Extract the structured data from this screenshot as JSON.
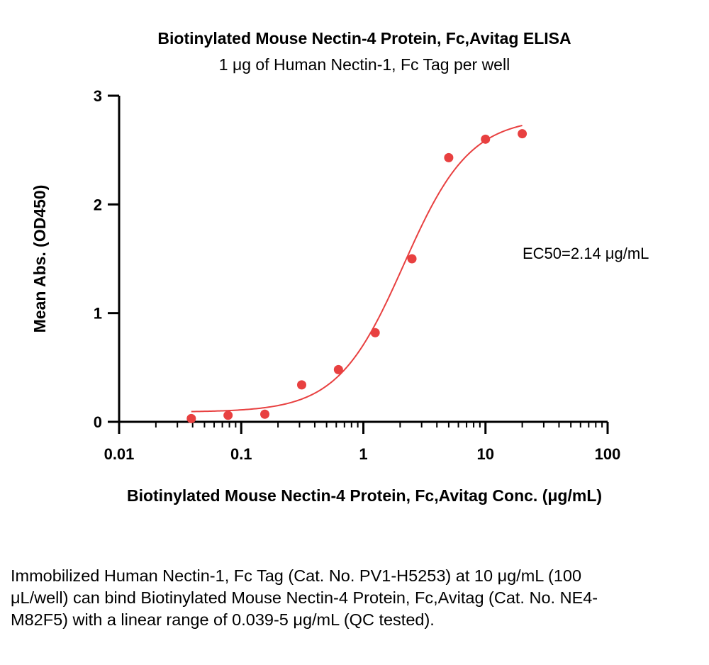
{
  "chart_data": {
    "type": "scatter",
    "title": "Biotinylated Mouse Nectin-4 Protein, Fc,Avitag ELISA",
    "subtitle": "1 μg of Human Nectin-1, Fc Tag per well",
    "xlabel": "Biotinylated Mouse Nectin-4 Protein, Fc,Avitag Conc. (μg/mL)",
    "ylabel": "Mean Abs. (OD450)",
    "x_scale": "log",
    "xlim": [
      0.01,
      100
    ],
    "ylim": [
      0,
      3
    ],
    "x_ticks": [
      0.01,
      0.1,
      1,
      10,
      100
    ],
    "x_tick_labels": [
      "0.01",
      "0.1",
      "1",
      "10",
      "100"
    ],
    "y_ticks": [
      0,
      1,
      2,
      3
    ],
    "y_tick_labels": [
      "0",
      "1",
      "2",
      "3"
    ],
    "grid": false,
    "series": [
      {
        "x": [
          0.039,
          0.078,
          0.156,
          0.3125,
          0.625,
          1.25,
          2.5,
          5,
          10,
          20
        ],
        "y": [
          0.03,
          0.06,
          0.07,
          0.34,
          0.48,
          0.82,
          1.5,
          2.43,
          2.6,
          2.65
        ],
        "color": "#e84040"
      }
    ],
    "fit_curve": {
      "model": "4PL",
      "bottom": 0.09,
      "top": 2.8,
      "ec50": 2.14,
      "hill": 1.6,
      "x_range": [
        0.039,
        20
      ],
      "color": "#e84040"
    },
    "annotation": "EC50=2.14 μg/mL"
  },
  "caption": "Immobilized Human Nectin-1, Fc Tag (Cat. No. PV1-H5253) at 10 μg/mL (100 μL/well) can bind Biotinylated Mouse Nectin-4 Protein, Fc,Avitag (Cat. No. NE4-M82F5) with a linear range of 0.039-5 μg/mL (QC tested)."
}
